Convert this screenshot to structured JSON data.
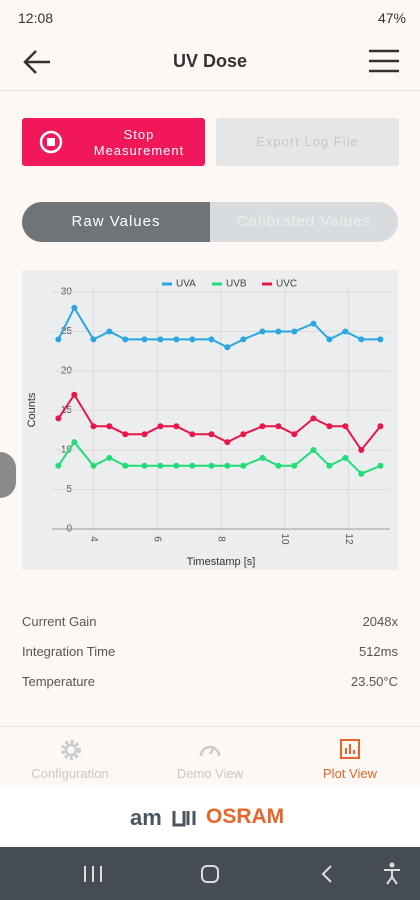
{
  "status_bar": {
    "time": "12:08",
    "battery": "47%"
  },
  "header": {
    "title": "UV Dose"
  },
  "buttons": {
    "stop": "Stop Measurement",
    "export": "Export Log File"
  },
  "tabs": {
    "raw": "Raw Values",
    "calibrated": "Calibrated Values"
  },
  "chart_data": {
    "type": "line",
    "x": [
      2.9,
      3.4,
      4.0,
      4.5,
      5.0,
      5.6,
      6.1,
      6.6,
      7.1,
      7.7,
      8.2,
      8.7,
      9.3,
      9.8,
      10.3,
      10.9,
      11.4,
      11.9,
      12.4,
      13.0
    ],
    "series": [
      {
        "name": "UVA",
        "color": "#2aa7e0",
        "values": [
          24,
          28,
          24,
          25,
          24,
          24,
          24,
          24,
          24,
          24,
          23,
          24,
          25,
          25,
          25,
          26,
          24,
          25,
          24,
          24
        ]
      },
      {
        "name": "UVB",
        "color": "#22dd77",
        "values": [
          8,
          11,
          8,
          9,
          8,
          8,
          8,
          8,
          8,
          8,
          8,
          8,
          9,
          8,
          8,
          10,
          8,
          9,
          7,
          8
        ]
      },
      {
        "name": "UVC",
        "color": "#e8174a",
        "values": [
          14,
          17,
          13,
          13,
          12,
          12,
          13,
          13,
          12,
          12,
          11,
          12,
          13,
          13,
          12,
          14,
          13,
          13,
          10,
          13
        ]
      }
    ],
    "xlim": [
      2.7,
      13.3
    ],
    "xticks": [
      4,
      6,
      8,
      10,
      12
    ],
    "ylim": [
      0,
      30
    ],
    "yticks": [
      0,
      5,
      10,
      15,
      20,
      25,
      30
    ],
    "xlabel": "Timestamp [s]",
    "ylabel": "Counts",
    "grid": true
  },
  "info": [
    {
      "label": "Current Gain",
      "value": "2048x"
    },
    {
      "label": "Integration Time",
      "value": "512ms"
    },
    {
      "label": "Temperature",
      "value": "23.50°C"
    }
  ],
  "nav": [
    "Configuration",
    "Demo View",
    "Plot View"
  ],
  "logo": {
    "left": "am",
    "right": "OSRAM"
  }
}
